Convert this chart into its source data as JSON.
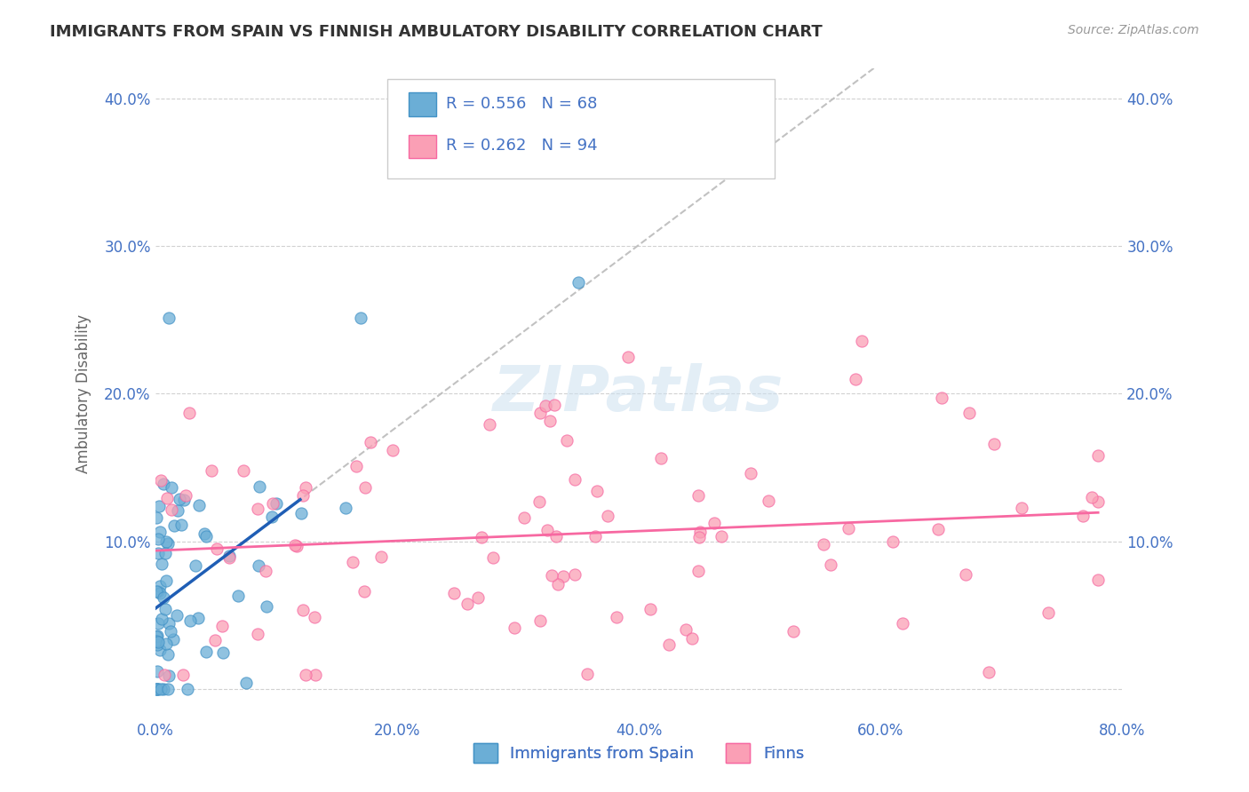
{
  "title": "IMMIGRANTS FROM SPAIN VS FINNISH AMBULATORY DISABILITY CORRELATION CHART",
  "source": "Source: ZipAtlas.com",
  "ylabel": "Ambulatory Disability",
  "xlim": [
    0.0,
    0.8
  ],
  "ylim": [
    -0.02,
    0.42
  ],
  "x_ticks": [
    0.0,
    0.2,
    0.4,
    0.6,
    0.8
  ],
  "x_tick_labels": [
    "0.0%",
    "20.0%",
    "40.0%",
    "60.0%",
    "80.0%"
  ],
  "y_ticks": [
    0.0,
    0.1,
    0.2,
    0.3,
    0.4
  ],
  "y_tick_labels": [
    "",
    "10.0%",
    "20.0%",
    "30.0%",
    "40.0%"
  ],
  "spain_color": "#6baed6",
  "spain_edge_color": "#4292c6",
  "finn_color": "#fa9fb5",
  "finn_edge_color": "#f768a1",
  "spain_R": 0.556,
  "spain_N": 68,
  "finn_R": 0.262,
  "finn_N": 94,
  "legend_label_spain": "Immigrants from Spain",
  "legend_label_finn": "Finns",
  "watermark": "ZIPatlas",
  "background_color": "#ffffff",
  "grid_color": "#cccccc",
  "title_color": "#333333",
  "axis_label_color": "#4472c4",
  "legend_text_color": "#4472c4",
  "spain_line_color": "#1f5eb5",
  "finn_line_color": "#f768a1",
  "regression_line_dashed_color": "#bbbbbb"
}
